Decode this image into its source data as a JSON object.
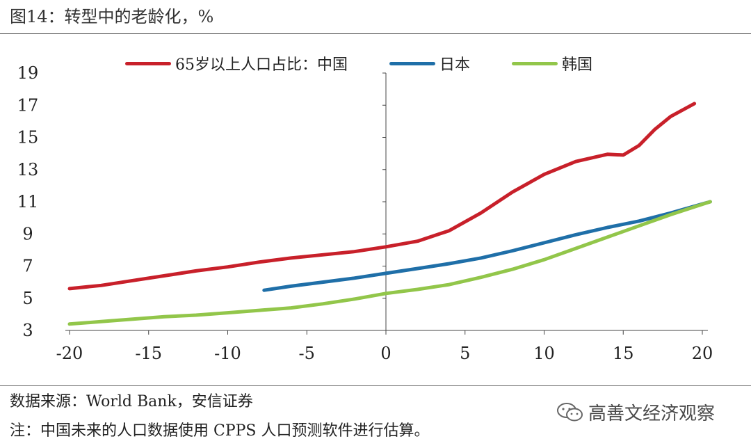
{
  "title": "图14：转型中的老龄化，%",
  "legend": [
    {
      "label": "65岁以上人口占比：中国",
      "color": "#c8202a"
    },
    {
      "label": "日本",
      "color": "#1f6fa8"
    },
    {
      "label": "韩国",
      "color": "#92c64a"
    }
  ],
  "footer": {
    "source": "数据来源：World Bank，安信证券",
    "note": "注：中国未来的人口数据使用 CPPS 人口预测软件进行估算。",
    "watermark": "高善文经济观察",
    "watermark_icon": "wechat-icon"
  },
  "chart_data": {
    "type": "line",
    "title": "转型中的老龄化，%",
    "xlabel": "",
    "ylabel": "",
    "xlim": [
      -20,
      20
    ],
    "ylim": [
      3,
      19
    ],
    "x_ticks": [
      -20,
      -15,
      -10,
      -5,
      0,
      5,
      10,
      15,
      20
    ],
    "y_ticks": [
      3,
      5,
      7,
      9,
      11,
      13,
      15,
      17,
      19
    ],
    "grid": false,
    "legend_position": "top",
    "series": [
      {
        "name": "65岁以上人口占比：中国",
        "color": "#c8202a",
        "x": [
          -20,
          -18,
          -16,
          -14,
          -12,
          -10,
          -8,
          -6,
          -4,
          -2,
          0,
          2,
          4,
          6,
          8,
          10,
          12,
          14,
          15,
          16,
          17,
          18,
          19.5
        ],
        "y": [
          5.6,
          5.8,
          6.1,
          6.4,
          6.7,
          6.95,
          7.25,
          7.5,
          7.7,
          7.9,
          8.2,
          8.55,
          9.2,
          10.3,
          11.6,
          12.7,
          13.5,
          13.95,
          13.9,
          14.5,
          15.5,
          16.3,
          17.1
        ]
      },
      {
        "name": "日本",
        "color": "#1f6fa8",
        "x": [
          -7.7,
          -6,
          -4,
          -2,
          0,
          2,
          4,
          6,
          8,
          10,
          12,
          14,
          16,
          18,
          20.5
        ],
        "y": [
          5.5,
          5.75,
          6.0,
          6.25,
          6.55,
          6.85,
          7.15,
          7.5,
          7.95,
          8.45,
          8.95,
          9.4,
          9.8,
          10.3,
          11.0
        ]
      },
      {
        "name": "韩国",
        "color": "#92c64a",
        "x": [
          -20,
          -18,
          -16,
          -14,
          -12,
          -10,
          -8,
          -6,
          -4,
          -2,
          0,
          2,
          4,
          6,
          8,
          10,
          12,
          14,
          16,
          18,
          20.5
        ],
        "y": [
          3.4,
          3.55,
          3.7,
          3.85,
          3.95,
          4.1,
          4.25,
          4.4,
          4.65,
          4.95,
          5.3,
          5.55,
          5.85,
          6.3,
          6.8,
          7.4,
          8.1,
          8.8,
          9.5,
          10.2,
          11.0
        ]
      }
    ]
  }
}
